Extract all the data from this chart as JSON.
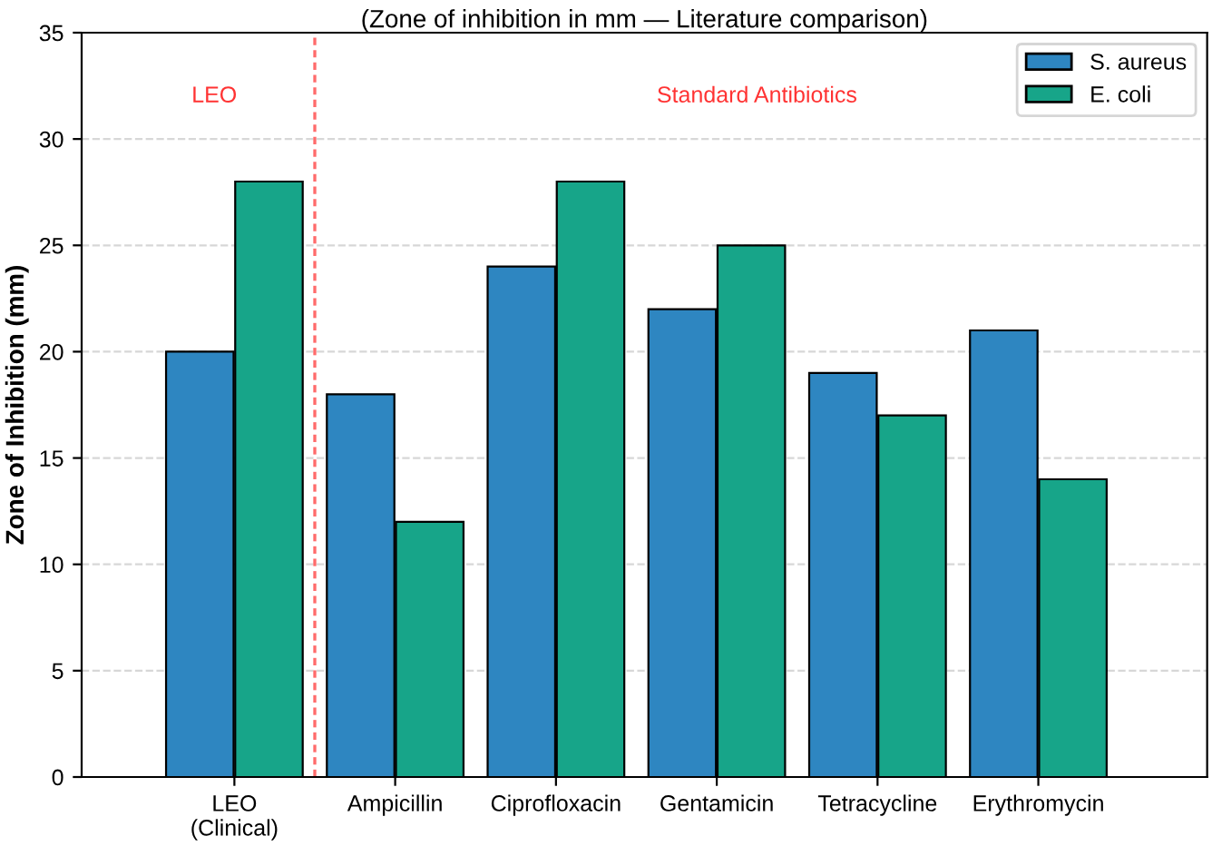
{
  "chart_data": {
    "type": "bar",
    "title": "(Zone of inhibition in mm — Literature comparison)",
    "ylabel": "Zone of Inhibition (mm)",
    "categories": [
      "LEO\n(Clinical)",
      "Ampicillin",
      "Ciprofloxacin",
      "Gentamicin",
      "Tetracycline",
      "Erythromycin"
    ],
    "series": [
      {
        "name": "S. aureus",
        "color": "#2e86c1",
        "values": [
          20,
          18,
          24,
          22,
          19,
          21
        ]
      },
      {
        "name": "E. coli",
        "color": "#17a589",
        "values": [
          28,
          12,
          28,
          25,
          17,
          14
        ]
      }
    ],
    "ylim": [
      0,
      35
    ],
    "yticks": [
      0,
      5,
      10,
      15,
      20,
      25,
      30,
      35
    ],
    "grid": "y",
    "legend": "top right",
    "annotations": [
      "LEO",
      "Standard Antibiotics"
    ]
  }
}
